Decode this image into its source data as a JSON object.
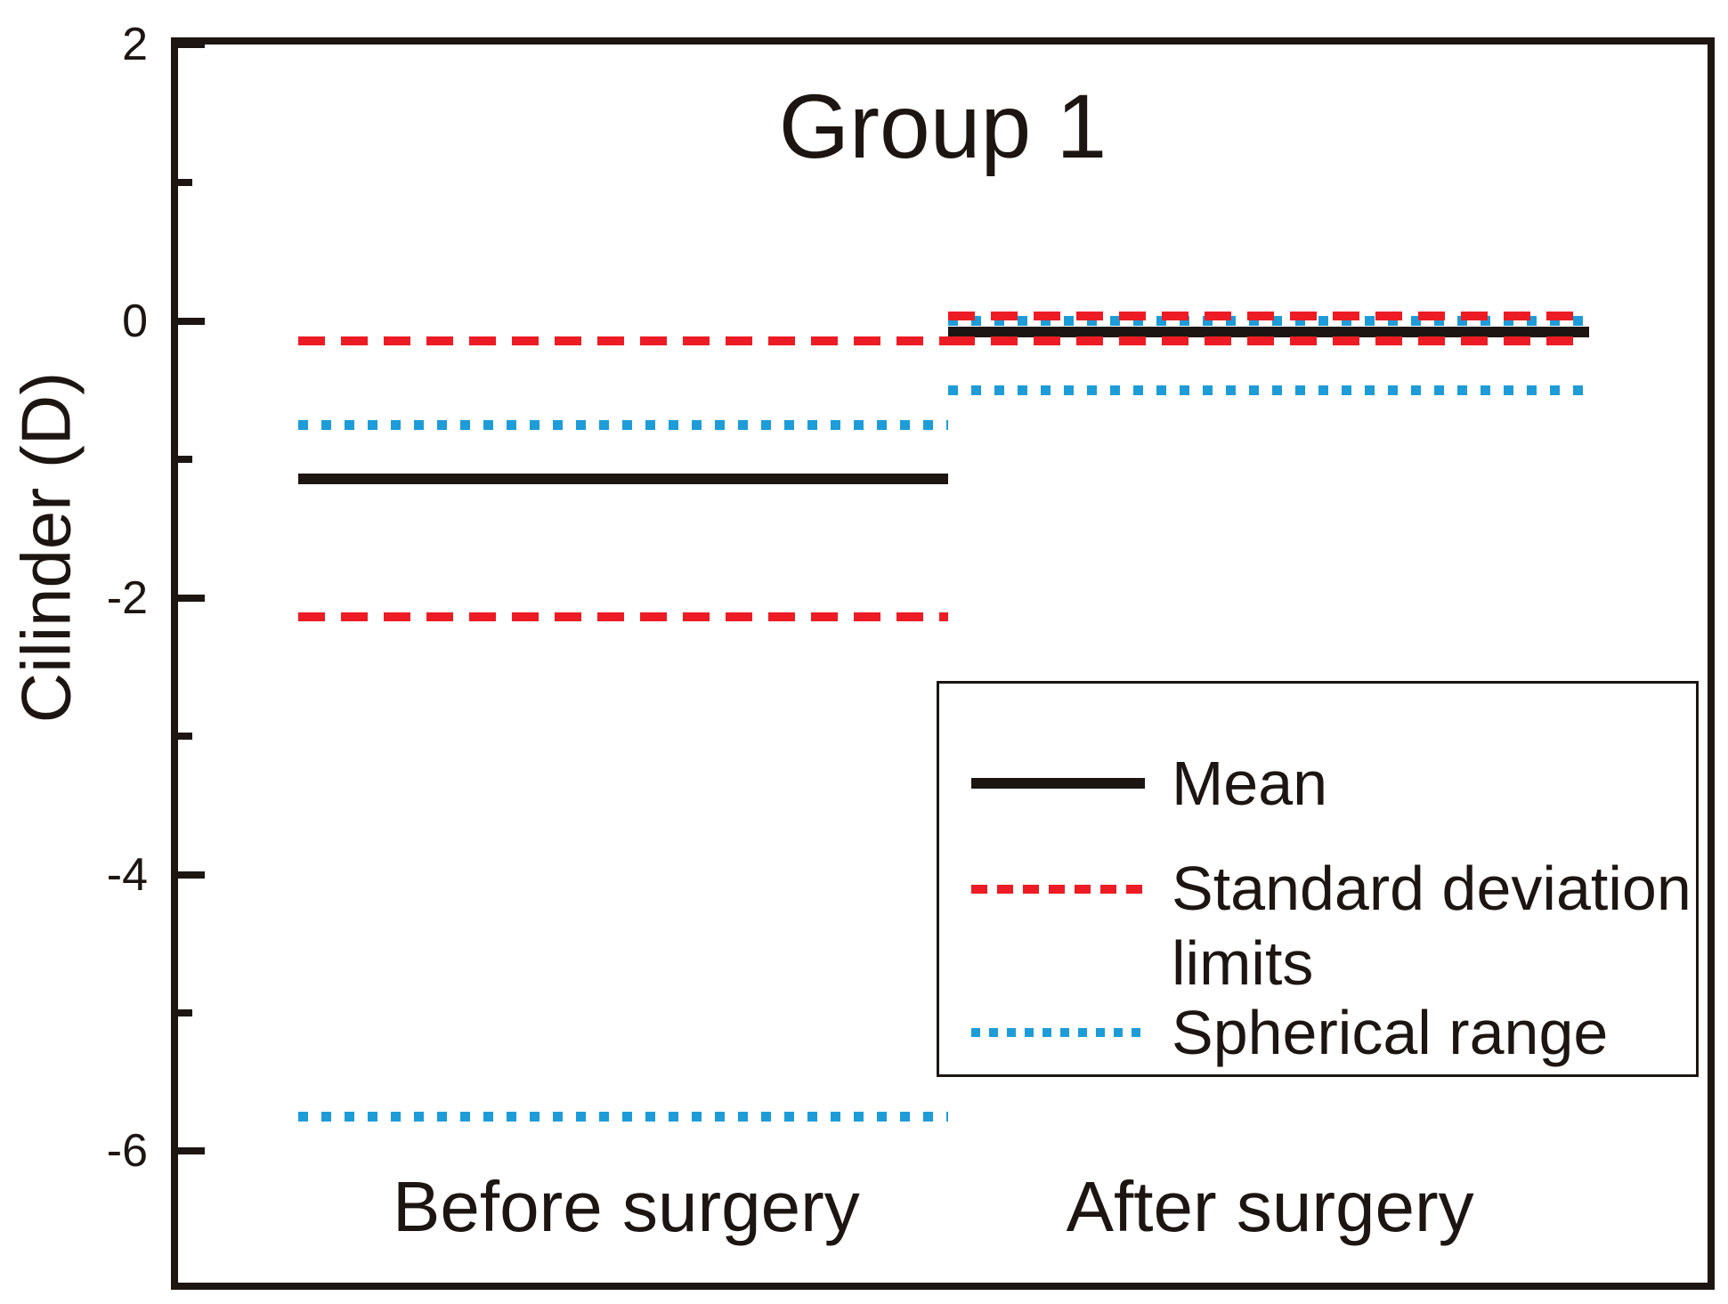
{
  "title": "Group 1",
  "y_axis": {
    "label": "Cilinder (D)"
  },
  "x_axis": {
    "categories": [
      "Before surgery",
      "After surgery"
    ]
  },
  "legend": {
    "entries": [
      {
        "label": "Mean",
        "style": "mean"
      },
      {
        "label": "Standard deviation limits",
        "label_lines": [
          "Standard deviation",
          "limits"
        ],
        "style": "sd"
      },
      {
        "label": "Spherical range",
        "style": "spherical"
      }
    ]
  },
  "colors": {
    "ink": "#1c1511",
    "sd_red": "#ed1c24",
    "spherical_blue": "#1e9cd8",
    "background": "#ffffff"
  },
  "chart_data": {
    "type": "line",
    "subtype": "horizontal mean / range interval lines per category",
    "title": "Group 1",
    "ylabel": "Cilinder (D)",
    "xlabel": "",
    "categories": [
      "Before surgery",
      "After surgery"
    ],
    "series": [
      {
        "name": "Mean",
        "style": "mean",
        "values": [
          -1.14,
          -0.08
        ]
      },
      {
        "name": "Standard deviation upper limit",
        "style": "sd",
        "values": [
          -0.14,
          0.04
        ]
      },
      {
        "name": "Standard deviation lower limit",
        "style": "sd",
        "values": [
          -2.14,
          -0.14
        ]
      },
      {
        "name": "Spherical range upper",
        "style": "spherical",
        "values": [
          -0.75,
          0.0
        ]
      },
      {
        "name": "Spherical range lower",
        "style": "spherical",
        "values": [
          -5.75,
          -0.5
        ]
      }
    ],
    "ylim": [
      -6.95,
      2.0
    ],
    "yticks_major": [
      2,
      0,
      -2,
      -4,
      -6
    ],
    "yticks_minor": [
      1,
      -1,
      -3,
      -5
    ],
    "grid": false,
    "legend_position": "inside lower right",
    "layout": {
      "group_spans": [
        [
          0.0786,
          0.5035
        ],
        [
          0.5035,
          0.9226
        ]
      ]
    }
  }
}
